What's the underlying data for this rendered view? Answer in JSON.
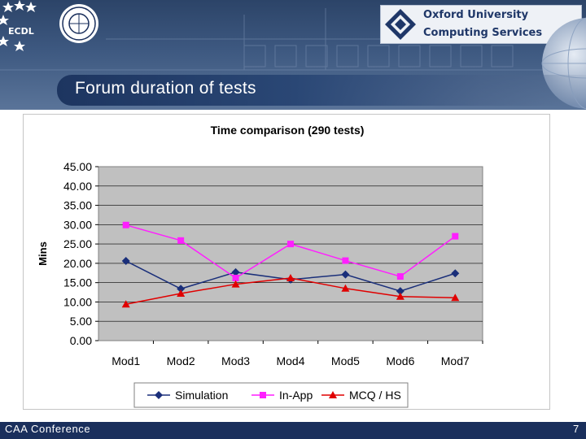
{
  "slide": {
    "title": "Forum duration of tests",
    "footer": "CAA Conference",
    "page_number": "7"
  },
  "logos": {
    "ecdl_text": "ECDL",
    "oucs_line1": "Oxford University",
    "oucs_line2": "Computing Services"
  },
  "colors": {
    "navy": "#1a2f5c",
    "plot_bg": "#c0c0c0",
    "simulation": "#1a2f7a",
    "in_app": "#ff1fff",
    "mcq": "#e00000"
  },
  "chart_data": {
    "type": "line",
    "title": "Time comparison (290 tests)",
    "xlabel": "",
    "ylabel": "Mins",
    "categories": [
      "Mod1",
      "Mod2",
      "Mod3",
      "Mod4",
      "Mod5",
      "Mod6",
      "Mod7"
    ],
    "ylim": [
      0,
      45
    ],
    "ytick_step": 5,
    "ytick_labels": [
      "0.00",
      "5.00",
      "10.00",
      "15.00",
      "20.00",
      "25.00",
      "30.00",
      "35.00",
      "40.00",
      "45.00"
    ],
    "grid": true,
    "legend": "bottom",
    "series": [
      {
        "name": "Simulation",
        "marker": "diamond",
        "color": "#1a2f7a",
        "values": [
          20.6,
          13.4,
          17.7,
          15.8,
          17.1,
          12.8,
          17.4
        ]
      },
      {
        "name": "In-App",
        "marker": "square",
        "color": "#ff1fff",
        "values": [
          29.9,
          25.9,
          16.2,
          25.0,
          20.7,
          16.6,
          27.0
        ]
      },
      {
        "name": "MCQ / HS",
        "marker": "triangle",
        "color": "#e00000",
        "values": [
          9.4,
          12.2,
          14.6,
          16.2,
          13.5,
          11.4,
          11.1
        ]
      }
    ]
  }
}
